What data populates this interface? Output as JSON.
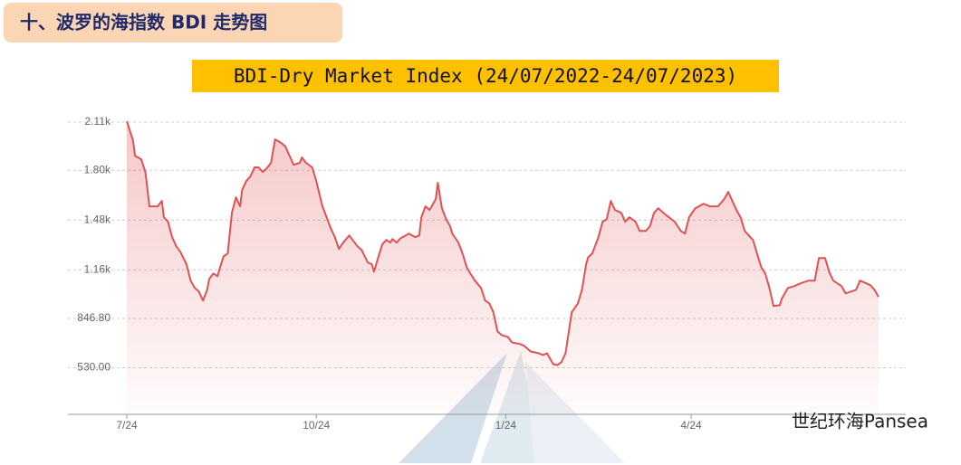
{
  "header": {
    "title": "十、波罗的海指数 BDI 走势图"
  },
  "watermark": "世纪环海Pansea",
  "chart_data": {
    "type": "line",
    "title": "BDI-Dry Market Index (24/07/2022-24/07/2023)",
    "color": "#e05252",
    "x": [
      0,
      3,
      4,
      7,
      9,
      11,
      15,
      17,
      18,
      20,
      22,
      24,
      26,
      29,
      31,
      33,
      35,
      37,
      39,
      40,
      42,
      44,
      46,
      47,
      49,
      51,
      53,
      55,
      56,
      58,
      60,
      62,
      64,
      66,
      68,
      70,
      72,
      75,
      77,
      79,
      81,
      84,
      85,
      87,
      90,
      92,
      95,
      97,
      99,
      101,
      103,
      105,
      108,
      112,
      114,
      117,
      119,
      120,
      122,
      124,
      126,
      128,
      129,
      131,
      133,
      137,
      140,
      142,
      143,
      145,
      147,
      150,
      151,
      153,
      155,
      157,
      158,
      161,
      163,
      165,
      167,
      169,
      172,
      174,
      176,
      178,
      180,
      182,
      185,
      187,
      191,
      193,
      196,
      200,
      202,
      204,
      207,
      209,
      211,
      213,
      215,
      216,
      219,
      221,
      223,
      224,
      226,
      229,
      231,
      233,
      235,
      237,
      240,
      242,
      244,
      247,
      249,
      252,
      254,
      256,
      258,
      262,
      266,
      269,
      271,
      273,
      276,
      280,
      283,
      287,
      290,
      292,
      294,
      296,
      298,
      300,
      302,
      304,
      306,
      308,
      310,
      312,
      314,
      317,
      318,
      321,
      324,
      327,
      331,
      334,
      336,
      339,
      341,
      343,
      347,
      349,
      354,
      356,
      361,
      363,
      365
    ],
    "values": [
      2115,
      1994,
      1894,
      1871,
      1790,
      1568,
      1568,
      1603,
      1498,
      1469,
      1370,
      1311,
      1276,
      1195,
      1090,
      1043,
      1020,
      961,
      1031,
      1101,
      1136,
      1119,
      1206,
      1247,
      1265,
      1527,
      1626,
      1568,
      1673,
      1731,
      1760,
      1819,
      1819,
      1790,
      1813,
      1848,
      1999,
      1976,
      1953,
      1894,
      1836,
      1848,
      1883,
      1848,
      1819,
      1731,
      1568,
      1498,
      1428,
      1370,
      1294,
      1335,
      1381,
      1311,
      1288,
      1206,
      1195,
      1148,
      1236,
      1323,
      1352,
      1335,
      1358,
      1335,
      1364,
      1393,
      1370,
      1381,
      1498,
      1568,
      1545,
      1615,
      1720,
      1556,
      1486,
      1440,
      1393,
      1335,
      1265,
      1177,
      1131,
      1090,
      1043,
      961,
      944,
      886,
      763,
      740,
      728,
      693,
      682,
      670,
      635,
      623,
      612,
      623,
      553,
      547,
      565,
      623,
      798,
      886,
      944,
      1031,
      1195,
      1241,
      1265,
      1370,
      1469,
      1486,
      1603,
      1545,
      1527,
      1469,
      1498,
      1469,
      1410,
      1410,
      1440,
      1527,
      1556,
      1510,
      1469,
      1410,
      1393,
      1498,
      1556,
      1585,
      1568,
      1568,
      1615,
      1661,
      1603,
      1545,
      1498,
      1410,
      1381,
      1352,
      1265,
      1177,
      1136,
      1043,
      927,
      932,
      973,
      1043,
      1055,
      1072,
      1090,
      1090,
      1236,
      1236,
      1148,
      1090,
      1055,
      1008,
      1031,
      1090,
      1061,
      1031,
      985
    ],
    "xlim": [
      0,
      365
    ],
    "xticks": [
      {
        "value": 0,
        "label": "7/24"
      },
      {
        "value": 92,
        "label": "10/24"
      },
      {
        "value": 184,
        "label": "1/24"
      },
      {
        "value": 274,
        "label": "4/24"
      }
    ],
    "ylim": [
      230,
      2170
    ],
    "yticks": [
      {
        "value": 2110,
        "label": "2.11k"
      },
      {
        "value": 1800,
        "label": "1.80k"
      },
      {
        "value": 1480,
        "label": "1.48k"
      },
      {
        "value": 1160,
        "label": "1.16k"
      },
      {
        "value": 846.8,
        "label": "846.80"
      },
      {
        "value": 530,
        "label": "530.00"
      }
    ],
    "grid": true
  }
}
